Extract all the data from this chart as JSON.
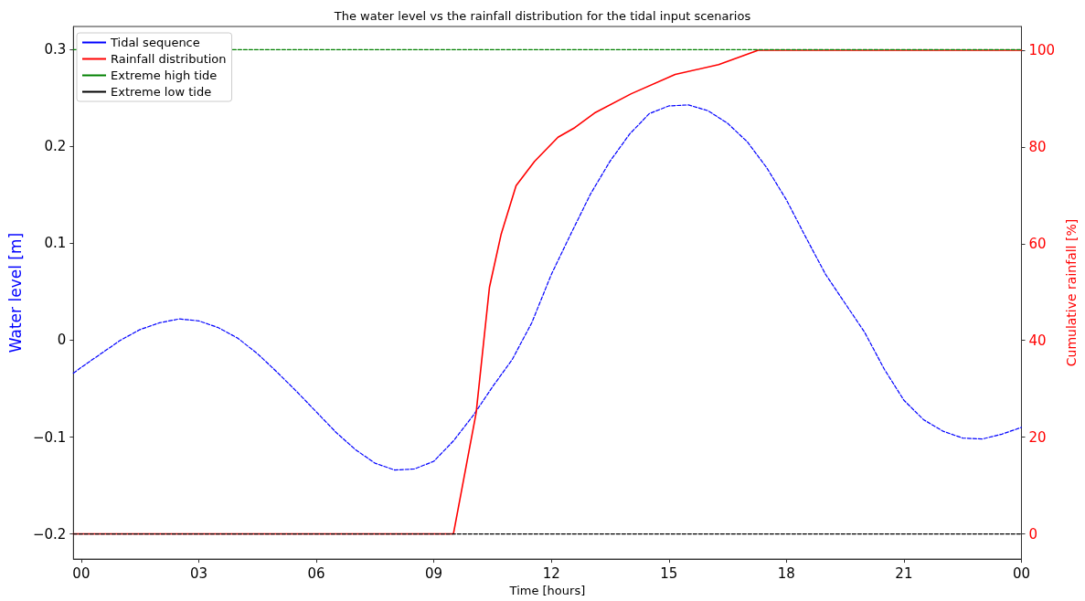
{
  "chart_data": {
    "type": "line",
    "title": "The water level vs the rainfall distribution for the tidal input scenarios",
    "xlabel": "Time [hours]",
    "ylabel": "Water level [m]",
    "y2label": "Cumulative rainfall [%]",
    "xlim": [
      -0.2,
      24
    ],
    "xticks": [
      {
        "value": 0,
        "label": "00"
      },
      {
        "value": 3,
        "label": "03"
      },
      {
        "value": 6,
        "label": "06"
      },
      {
        "value": 9,
        "label": "09"
      },
      {
        "value": 12,
        "label": "12"
      },
      {
        "value": 15,
        "label": "15"
      },
      {
        "value": 18,
        "label": "18"
      },
      {
        "value": 21,
        "label": "21"
      },
      {
        "value": 24,
        "label": "00"
      }
    ],
    "ylim": [
      -0.226,
      0.324
    ],
    "yticks": [
      {
        "value": -0.2,
        "label": "−0.2"
      },
      {
        "value": -0.1,
        "label": "−0.1"
      },
      0.0,
      0.1,
      0.2,
      0.3
    ],
    "y2lim": [
      -5.2,
      104.9
    ],
    "y2ticks": [
      0,
      20,
      40,
      60,
      80,
      100
    ],
    "legend": "top left",
    "grid": false,
    "marker": "none",
    "series": [
      {
        "name": "Tidal sequence",
        "color": "#0000ff",
        "line_style": "dashed",
        "x": [
          -0.2,
          0,
          0.5,
          1,
          1.5,
          2,
          2.5,
          3,
          3.5,
          4,
          4.5,
          5,
          5.5,
          6,
          6.5,
          7,
          7.5,
          8,
          8.5,
          9,
          9.5,
          10,
          10.5,
          11,
          11.5,
          12,
          12.5,
          13,
          13.5,
          14,
          14.5,
          15,
          15.5,
          16,
          16.5,
          17,
          17.5,
          18,
          18.5,
          19,
          19.5,
          20,
          20.5,
          21,
          21.5,
          22,
          22.5,
          23,
          23.5,
          24
        ],
        "values": [
          -0.034,
          -0.028,
          -0.014,
          0.0,
          0.011,
          0.018,
          0.022,
          0.02,
          0.013,
          0.002,
          -0.014,
          -0.033,
          -0.053,
          -0.074,
          -0.095,
          -0.113,
          -0.127,
          -0.134,
          -0.133,
          -0.125,
          -0.104,
          -0.078,
          -0.048,
          -0.02,
          0.018,
          0.068,
          0.11,
          0.151,
          0.185,
          0.213,
          0.234,
          0.242,
          0.243,
          0.237,
          0.224,
          0.205,
          0.178,
          0.145,
          0.106,
          0.068,
          0.038,
          0.008,
          -0.03,
          -0.062,
          -0.082,
          -0.094,
          -0.101,
          -0.102,
          -0.097,
          -0.09
        ]
      },
      {
        "name": "Rainfall distribution",
        "color": "#ff0000",
        "line_style": "solid",
        "axis": "y2",
        "x": [
          -0.2,
          9.5,
          10.08,
          10.42,
          10.72,
          11.1,
          11.57,
          12.17,
          12.6,
          13.1,
          14.04,
          15.16,
          16.27,
          17.28,
          17.6,
          24
        ],
        "values": [
          0,
          0,
          25,
          51,
          62,
          72,
          77,
          82,
          84,
          87,
          91,
          95,
          97,
          100,
          100,
          100
        ]
      },
      {
        "name": "Extreme high tide",
        "color": "#008000",
        "line_style": "dashed",
        "x": [
          -0.2,
          24
        ],
        "values": [
          0.3,
          0.3
        ]
      },
      {
        "name": "Extreme low tide",
        "color": "#000000",
        "line_style": "dashed",
        "x": [
          -0.2,
          24
        ],
        "values": [
          -0.2,
          -0.2
        ]
      }
    ]
  }
}
